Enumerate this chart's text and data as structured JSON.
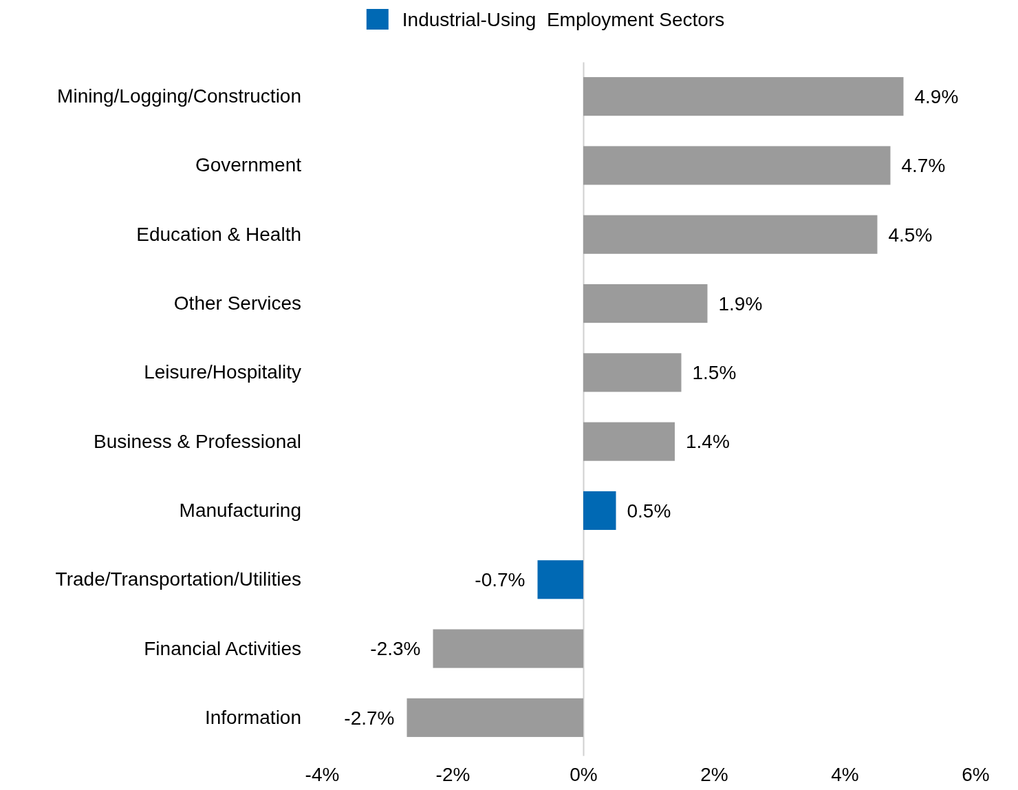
{
  "chart_data": {
    "type": "bar",
    "orientation": "horizontal",
    "categories": [
      "Mining/Logging/Construction",
      "Government",
      "Education & Health",
      "Other Services",
      "Leisure/Hospitality",
      "Business & Professional",
      "Manufacturing",
      "Trade/Transportation/Utilities",
      "Financial Activities",
      "Information"
    ],
    "series": [
      {
        "color": "#9b9b9b",
        "values": [
          4.9,
          4.7,
          4.5,
          1.9,
          1.5,
          1.4,
          null,
          null,
          -2.3,
          -2.7
        ],
        "value_labels": [
          "4.9%",
          "4.7%",
          "4.5%",
          "1.9%",
          "1.5%",
          "1.4%",
          null,
          null,
          "-2.3%",
          "-2.7%"
        ]
      },
      {
        "name": "Industrial-Using  Employment Sectors",
        "color": "#0069b4",
        "values": [
          null,
          null,
          null,
          null,
          null,
          null,
          0.5,
          -0.7,
          null,
          null
        ],
        "value_labels": [
          null,
          null,
          null,
          null,
          null,
          null,
          "0.5%",
          "-0.7%",
          null,
          null
        ]
      }
    ],
    "xlim": [
      -4,
      6
    ],
    "xticks": [
      {
        "value": -4,
        "label": "-4%"
      },
      {
        "value": -2,
        "label": "-2%"
      },
      {
        "value": 0,
        "label": "0%"
      },
      {
        "value": 2,
        "label": "2%"
      },
      {
        "value": 4,
        "label": "4%"
      },
      {
        "value": 6,
        "label": "6%"
      }
    ],
    "legend": "top"
  }
}
